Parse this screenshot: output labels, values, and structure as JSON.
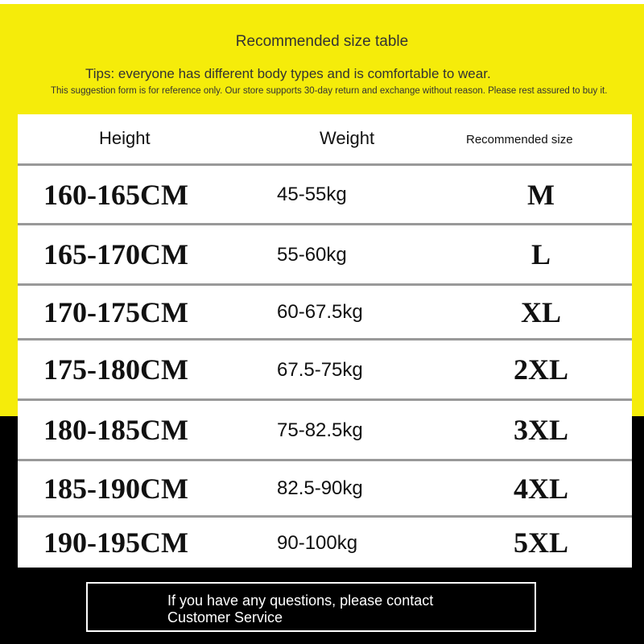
{
  "colors": {
    "background_top": "#f5ec0a",
    "background_bottom": "#000000",
    "table": "#ffffff"
  },
  "title": "Recommended size table",
  "tips": "Tips: everyone has different body types and is comfortable to wear.",
  "note": "This suggestion form is for reference only. Our store supports 30-day return and exchange without reason. Please rest assured to buy it.",
  "table": {
    "headers": [
      "Height",
      "Weight",
      "Recommended size"
    ],
    "rows": [
      {
        "height": "160-165CM",
        "weight": "45-55kg",
        "size": "M"
      },
      {
        "height": "165-170CM",
        "weight": "55-60kg",
        "size": "L"
      },
      {
        "height": "170-175CM",
        "weight": "60-67.5kg",
        "size": "XL"
      },
      {
        "height": "175-180CM",
        "weight": "67.5-75kg",
        "size": "2XL"
      },
      {
        "height": "180-185CM",
        "weight": "75-82.5kg",
        "size": "3XL"
      },
      {
        "height": "185-190CM",
        "weight": "82.5-90kg",
        "size": "4XL"
      },
      {
        "height": "190-195CM",
        "weight": "90-100kg",
        "size": "5XL"
      }
    ]
  },
  "footer": {
    "line1": "If you have any questions, please contact",
    "line2": "Customer Service"
  }
}
